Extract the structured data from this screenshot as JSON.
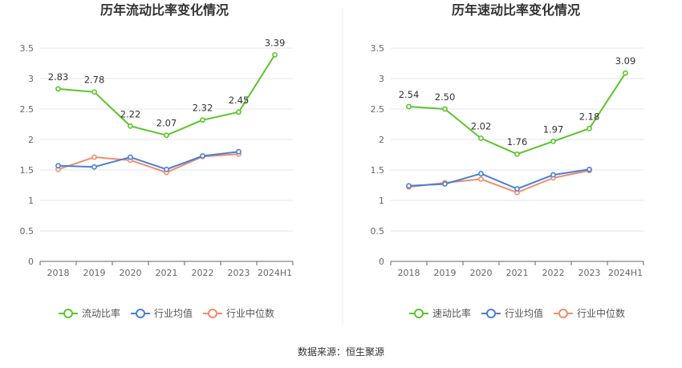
{
  "source": "数据来源：恒生聚源",
  "colors": {
    "main": "#5cc42c",
    "avg": "#4a7fd6",
    "median": "#f08c6c",
    "grid": "#e6e6e6",
    "axis": "#666666"
  },
  "chart_data": [
    {
      "type": "line",
      "title": "历年流动比率变化情况",
      "categories": [
        "2018",
        "2019",
        "2020",
        "2021",
        "2022",
        "2023",
        "2024H1"
      ],
      "ylim": [
        0,
        3.5
      ],
      "yticks": [
        "0",
        "0.5",
        "1",
        "1.5",
        "2",
        "2.5",
        "3",
        "3.5"
      ],
      "grid": true,
      "legend_position": "bottom",
      "series": [
        {
          "name": "流动比率",
          "key": "main",
          "values": [
            2.83,
            2.78,
            2.22,
            2.07,
            2.32,
            2.45,
            3.39
          ],
          "labels": [
            "2.83",
            "2.78",
            "2.22",
            "2.07",
            "2.32",
            "2.45",
            "3.39"
          ]
        },
        {
          "name": "行业均值",
          "key": "avg",
          "values": [
            1.57,
            1.55,
            1.71,
            1.51,
            1.73,
            1.8,
            null
          ]
        },
        {
          "name": "行业中位数",
          "key": "median",
          "values": [
            1.51,
            1.71,
            1.66,
            1.46,
            1.72,
            1.76,
            null
          ]
        }
      ]
    },
    {
      "type": "line",
      "title": "历年速动比率变化情况",
      "categories": [
        "2018",
        "2019",
        "2020",
        "2021",
        "2022",
        "2023",
        "2024H1"
      ],
      "ylim": [
        0,
        3.5
      ],
      "yticks": [
        "0",
        "0.5",
        "1",
        "1.5",
        "2",
        "2.5",
        "3",
        "3.5"
      ],
      "grid": true,
      "legend_position": "bottom",
      "series": [
        {
          "name": "速动比率",
          "key": "main",
          "values": [
            2.54,
            2.5,
            2.02,
            1.76,
            1.97,
            2.18,
            3.09
          ],
          "labels": [
            "2.54",
            "2.50",
            "2.02",
            "1.76",
            "1.97",
            "2.18",
            "3.09"
          ]
        },
        {
          "name": "行业均值",
          "key": "avg",
          "values": [
            1.24,
            1.27,
            1.44,
            1.19,
            1.42,
            1.51,
            null
          ]
        },
        {
          "name": "行业中位数",
          "key": "median",
          "values": [
            1.22,
            1.29,
            1.35,
            1.13,
            1.37,
            1.49,
            null
          ]
        }
      ]
    }
  ]
}
